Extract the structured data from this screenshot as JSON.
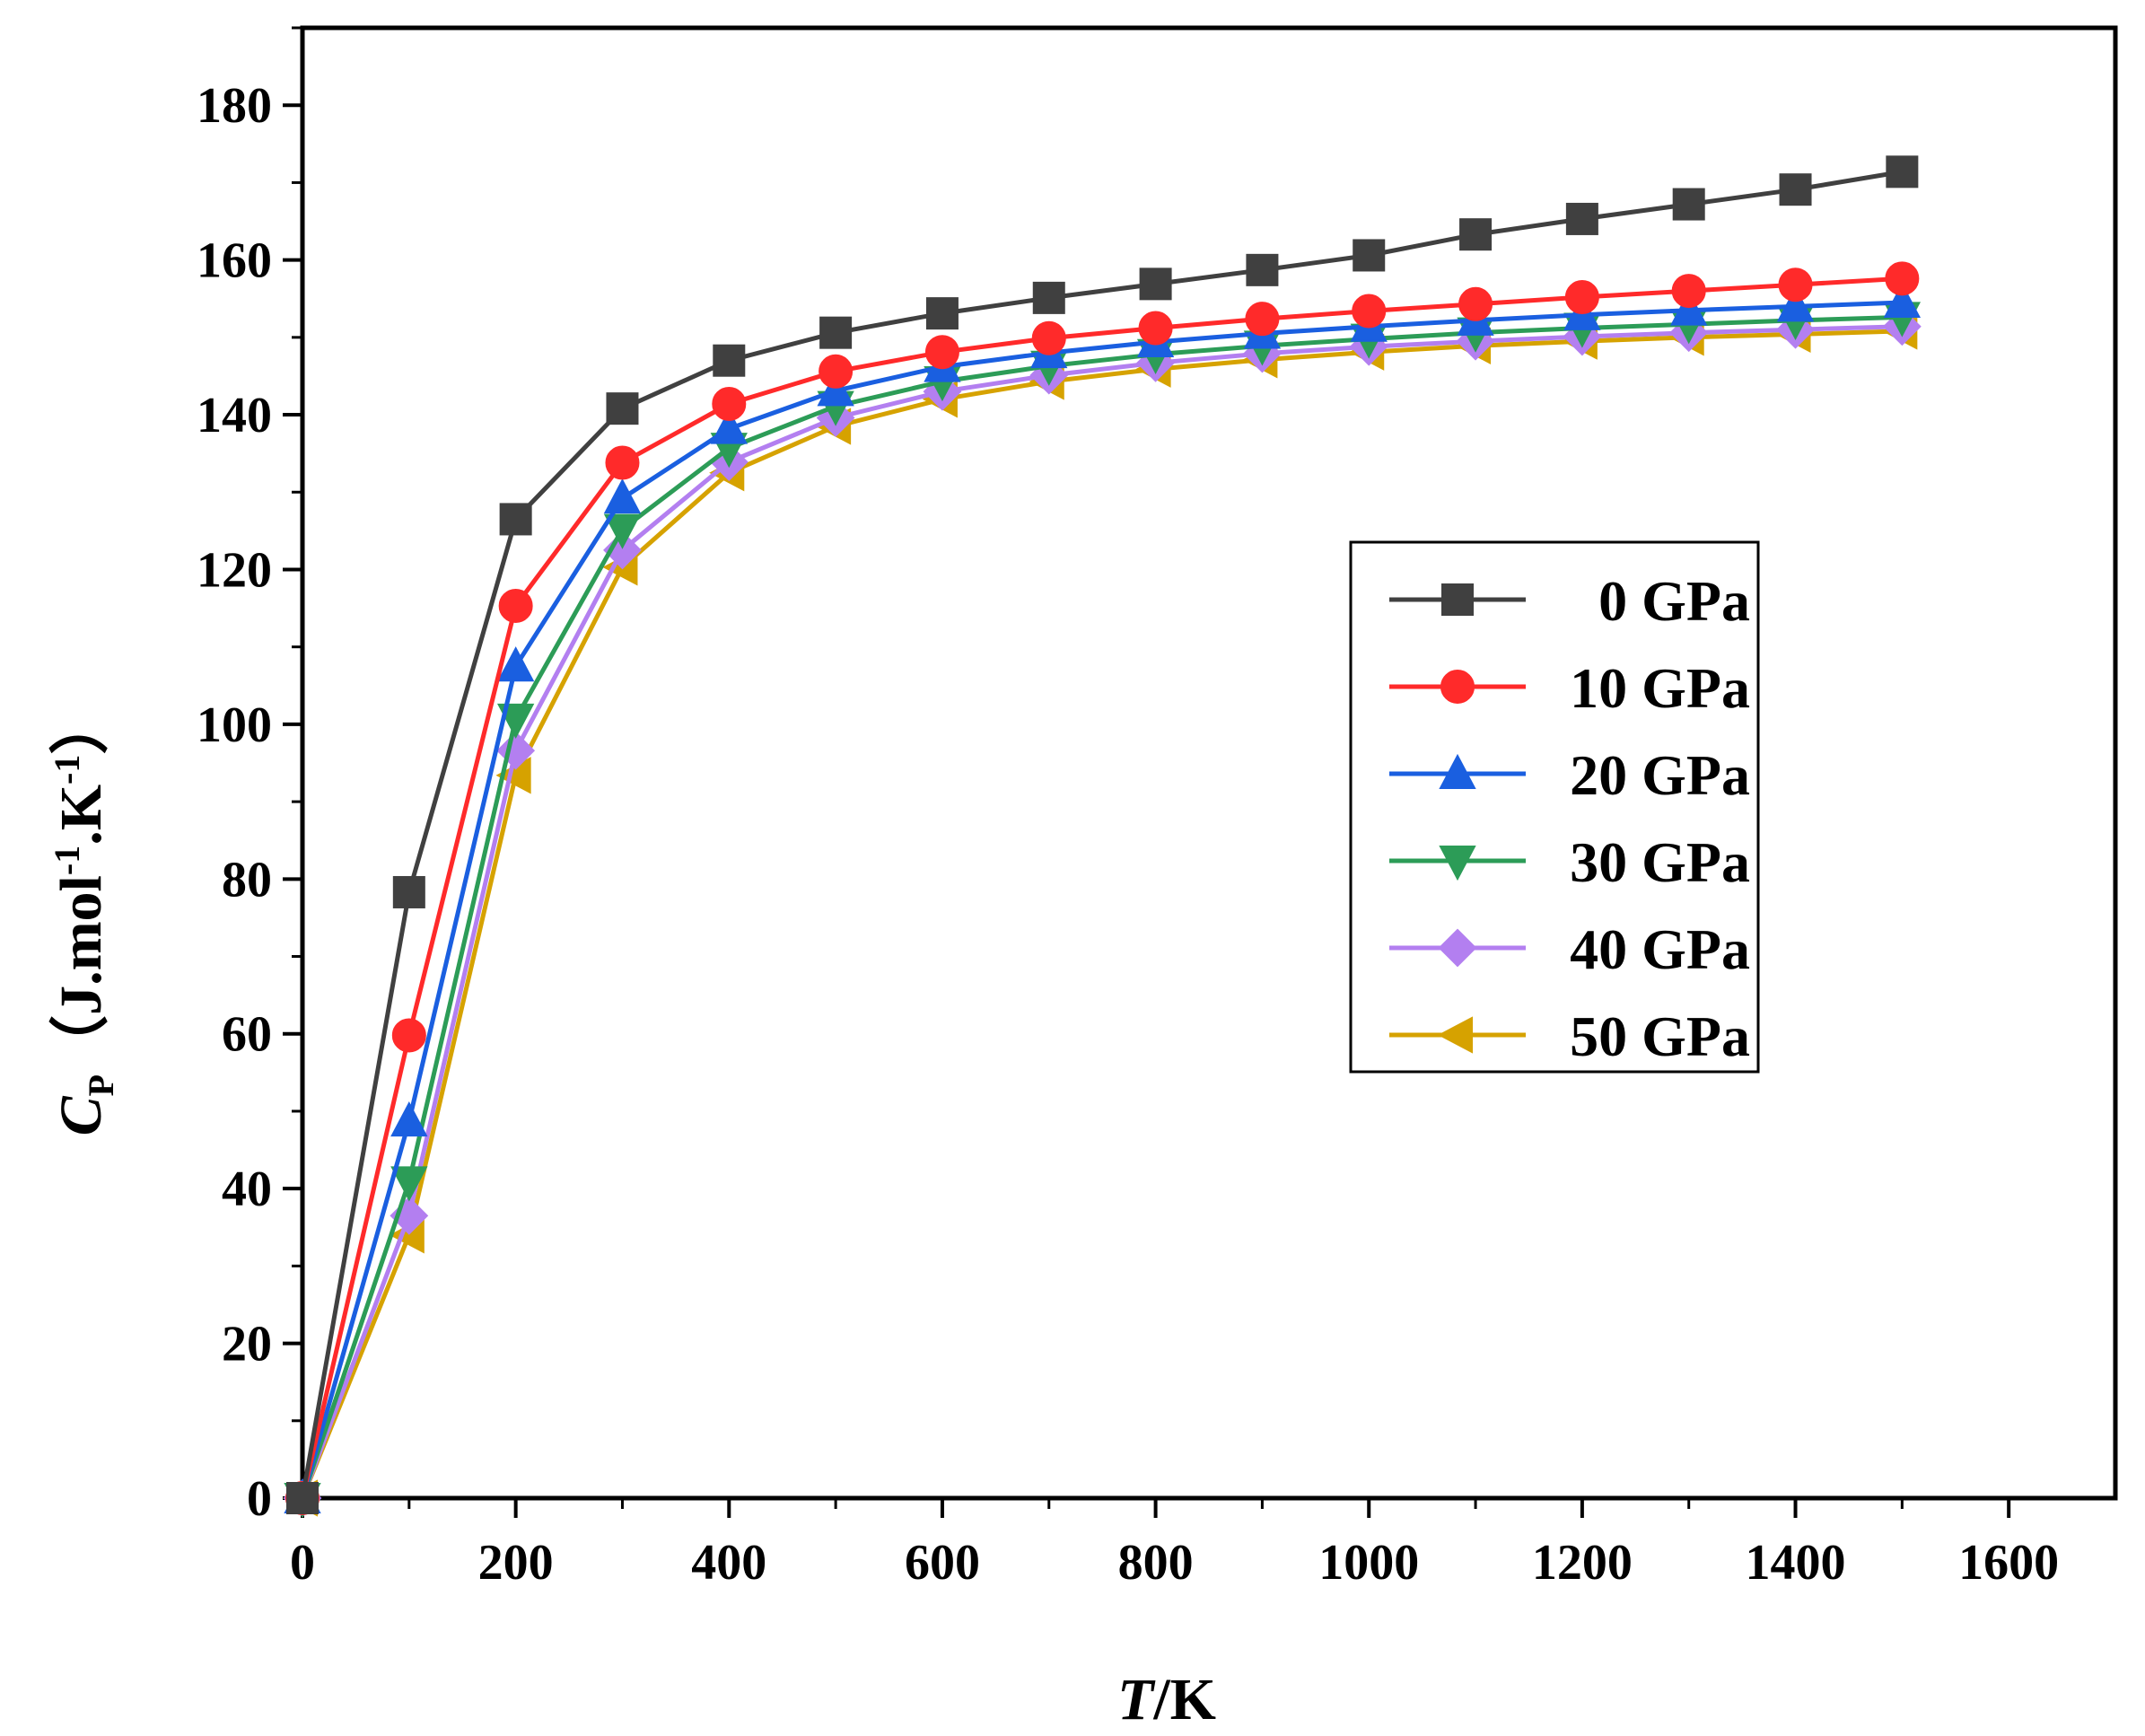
{
  "chart_data": {
    "type": "line",
    "title": "",
    "xlabel_var": "T",
    "xlabel_unit": "/K",
    "ylabel_var": "C",
    "ylabel_sub": "P",
    "ylabel_open": "（J.mol",
    "ylabel_sup1": "-1",
    "ylabel_mid": ".K",
    "ylabel_sup2": "-1",
    "ylabel_close": "）",
    "xlim": [
      0,
      1700
    ],
    "ylim": [
      0,
      190
    ],
    "xticks": [
      0,
      200,
      400,
      600,
      800,
      1000,
      1200,
      1400,
      1600
    ],
    "yticks": [
      0,
      20,
      40,
      60,
      80,
      100,
      120,
      140,
      160,
      180
    ],
    "legend_position": "center-right",
    "x": [
      0,
      100,
      200,
      300,
      400,
      500,
      600,
      700,
      800,
      900,
      1000,
      1100,
      1200,
      1300,
      1400,
      1500
    ],
    "series": [
      {
        "name": "0 GPa",
        "color": "#404040",
        "marker": "square",
        "values": [
          0,
          78.3,
          126.5,
          140.8,
          147,
          150.6,
          153.1,
          155.1,
          156.9,
          158.7,
          160.6,
          163.3,
          165.3,
          167.2,
          169.1,
          171.4
        ]
      },
      {
        "name": "10 GPa",
        "color": "#ff2a2a",
        "marker": "circle",
        "values": [
          0,
          59.8,
          115.3,
          133.8,
          141.4,
          145.6,
          148.1,
          149.9,
          151.2,
          152.4,
          153.4,
          154.3,
          155.2,
          156,
          156.8,
          157.6
        ]
      },
      {
        "name": "20 GPa",
        "color": "#1a5fe0",
        "marker": "triangle-up",
        "values": [
          0,
          48.7,
          107.5,
          129.2,
          138.2,
          143.1,
          146.2,
          148,
          149.4,
          150.5,
          151.4,
          152.2,
          152.9,
          153.5,
          154,
          154.5
        ]
      },
      {
        "name": "30 GPa",
        "color": "#2c9c57",
        "marker": "triangle-down",
        "values": [
          0,
          40.9,
          100.7,
          125.2,
          135.7,
          141.1,
          144.3,
          146.3,
          147.8,
          148.9,
          149.8,
          150.6,
          151.2,
          151.7,
          152.2,
          152.6
        ]
      },
      {
        "name": "40 GPa",
        "color": "#b37ff0",
        "marker": "diamond",
        "values": [
          0,
          36.5,
          96.6,
          122.5,
          133.9,
          139.6,
          143,
          145.1,
          146.7,
          147.9,
          148.8,
          149.5,
          150.1,
          150.6,
          151,
          151.4
        ]
      },
      {
        "name": "50 GPa",
        "color": "#d6a200",
        "marker": "triangle-left",
        "values": [
          0,
          34,
          93.4,
          120.3,
          132.5,
          138.5,
          142,
          144.3,
          145.9,
          147.1,
          148.1,
          148.9,
          149.5,
          150,
          150.4,
          150.8
        ]
      }
    ]
  }
}
